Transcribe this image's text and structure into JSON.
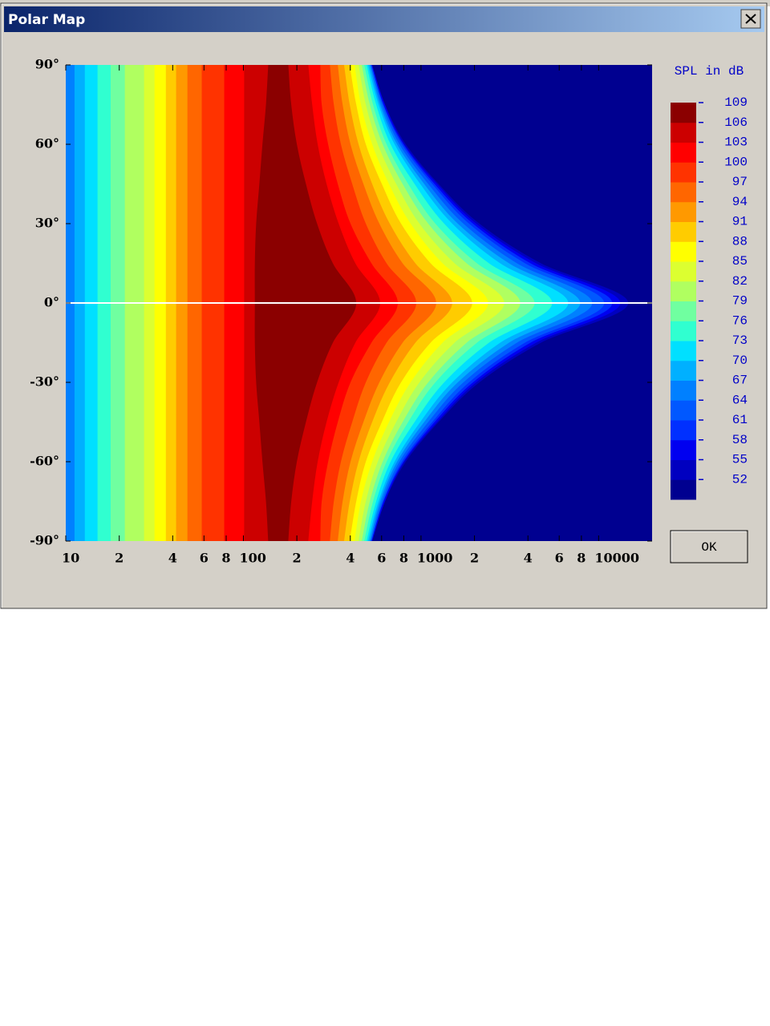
{
  "window": {
    "title": "Polar Map"
  },
  "button": {
    "label": "OK"
  },
  "chart_data": {
    "type": "contour",
    "x_scale": "log",
    "xlim": [
      10,
      20000
    ],
    "xticks": [
      10,
      {
        "value": 20,
        "label": "2"
      },
      {
        "value": 40,
        "label": "4"
      },
      {
        "value": 60,
        "label": "6"
      },
      {
        "value": 80,
        "label": "8"
      },
      100,
      {
        "value": 200,
        "label": "2"
      },
      {
        "value": 400,
        "label": "4"
      },
      {
        "value": 600,
        "label": "6"
      },
      {
        "value": 800,
        "label": "8"
      },
      1000,
      {
        "value": 2000,
        "label": "2"
      },
      {
        "value": 4000,
        "label": "4"
      },
      {
        "value": 6000,
        "label": "6"
      },
      {
        "value": 8000,
        "label": "8"
      },
      10000
    ],
    "ylim": [
      -90,
      90
    ],
    "yticks": [
      {
        "value": 90,
        "label": "90°"
      },
      {
        "value": 60,
        "label": "60°"
      },
      {
        "value": 30,
        "label": "30°"
      },
      {
        "value": 0,
        "label": "0°"
      },
      {
        "value": -30,
        "label": "-30°"
      },
      {
        "value": -60,
        "label": "-60°"
      },
      {
        "value": -90,
        "label": "-90°"
      }
    ],
    "zero_line": true,
    "zero_line_color": "#ffffff",
    "angles": [
      -90,
      -75,
      -60,
      -45,
      -30,
      -15,
      0,
      15,
      30,
      45,
      60,
      75,
      90
    ],
    "contours": [
      {
        "level": 52,
        "fall": [
          531,
          627,
          821,
          1257,
          2133,
          4739,
          14680,
          4739,
          2133,
          1257,
          821,
          627,
          531
        ]
      },
      {
        "level": 55,
        "fall": [
          531,
          627,
          804,
          1231,
          2046,
          4452,
          13230,
          4452,
          2046,
          1231,
          804,
          627,
          531
        ]
      },
      {
        "level": 58,
        "fall": [
          526,
          614,
          796,
          1193,
          1963,
          4141,
          11930,
          4141,
          1963,
          1193,
          796,
          614,
          526
        ]
      },
      {
        "level": 61,
        "fall": [
          526,
          614,
          780,
          1157,
          1864,
          3851,
          10750,
          3851,
          1864,
          1157,
          780,
          614,
          526
        ]
      },
      {
        "level": 64,
        "fall": [
          520,
          602,
          756,
          1098,
          1733,
          3472,
          9205,
          3472,
          1733,
          1098,
          756,
          602,
          520
        ]
      },
      {
        "level": 67,
        "rise": [
          11.2,
          11.2,
          11.2,
          11.2,
          11.2,
          11.2,
          11.2,
          11.2,
          11.2,
          11.2,
          11.2,
          11.2,
          11.2
        ],
        "fall": [
          515,
          589,
          733,
          1042,
          1612,
          3130,
          7878,
          3130,
          1612,
          1042,
          733,
          589,
          515
        ]
      },
      {
        "level": 70,
        "rise": [
          12.8,
          12.8,
          12.8,
          12.8,
          12.8,
          12.8,
          12.8,
          12.8,
          12.8,
          12.8,
          12.8,
          12.8,
          12.8
        ],
        "fall": [
          504,
          577,
          710,
          990,
          1499,
          2792,
          6745,
          2792,
          1499,
          990,
          710,
          577,
          504
        ]
      },
      {
        "level": 73,
        "rise": [
          15.1,
          15.1,
          15.1,
          15.1,
          15.1,
          15.1,
          15.1,
          15.1,
          15.1,
          15.1,
          15.1,
          15.1,
          15.1
        ],
        "fall": [
          494,
          559,
          674,
          920,
          1351,
          2415,
          5480,
          2415,
          1351,
          920,
          674,
          559,
          494
        ]
      },
      {
        "level": 76,
        "rise": [
          17.9,
          17.9,
          17.9,
          17.9,
          17.9,
          17.9,
          17.9,
          17.9,
          17.9,
          17.9,
          17.9,
          17.9,
          17.9
        ],
        "fall": [
          479,
          537,
          640,
          847,
          1205,
          2067,
          4361,
          2067,
          1205,
          847,
          640,
          537,
          479
        ]
      },
      {
        "level": 79,
        "rise": [
          21.5,
          21.5,
          21.5,
          21.5,
          21.5,
          21.5,
          21.5,
          21.5,
          21.5,
          21.5,
          21.5,
          21.5,
          21.5
        ],
        "fall": [
          464,
          515,
          608,
          788,
          1098,
          1807,
          3620,
          1807,
          1098,
          788,
          608,
          515,
          464
        ]
      },
      {
        "level": 82,
        "rise": [
          27.6,
          27.6,
          27.6,
          27.6,
          27.6,
          27.6,
          27.6,
          27.6,
          27.6,
          27.6,
          27.6,
          27.6,
          27.6
        ],
        "fall": [
          445,
          489,
          571,
          725,
          980,
          1546,
          2942,
          1546,
          980,
          725,
          571,
          489,
          445
        ]
      },
      {
        "level": 85,
        "rise": [
          31.6,
          31.6,
          31.6,
          31.6,
          31.6,
          31.6,
          31.6,
          31.6,
          31.6,
          31.6,
          31.6,
          31.6,
          31.6
        ],
        "fall": [
          423,
          459,
          531,
          660,
          874,
          1323,
          2390,
          1323,
          874,
          660,
          531,
          459,
          423
        ]
      },
      {
        "level": 88,
        "rise": [
          36.6,
          36.6,
          36.6,
          36.6,
          36.6,
          36.6,
          36.6,
          36.6,
          36.6,
          36.6,
          36.6,
          36.6,
          36.6
        ],
        "fall": [
          397,
          432,
          489,
          602,
          772,
          1133,
          1943,
          1133,
          772,
          602,
          489,
          432,
          397
        ]
      },
      {
        "level": 91,
        "rise": [
          41.8,
          41.8,
          41.8,
          41.8,
          41.8,
          41.8,
          41.8,
          41.8,
          41.8,
          41.8,
          41.8,
          41.8,
          41.8
        ],
        "fall": [
          369,
          397,
          445,
          531,
          667,
          930,
          1499,
          930,
          667,
          531,
          445,
          397,
          369
        ]
      },
      {
        "level": 94,
        "rise": [
          48.4,
          48.4,
          48.4,
          48.4,
          48.4,
          48.4,
          48.4,
          48.4,
          48.4,
          48.4,
          48.4,
          48.4,
          48.4
        ],
        "fall": [
          340,
          362,
          401,
          474,
          583,
          788,
          1218,
          788,
          583,
          474,
          401,
          362,
          340
        ]
      },
      {
        "level": 97,
        "rise": [
          58.3,
          58.3,
          58.3,
          58.3,
          58.3,
          58.3,
          58.3,
          58.3,
          58.3,
          58.3,
          58.3,
          58.3,
          58.3
        ],
        "fall": [
          307,
          323,
          354,
          410,
          489,
          640,
          940,
          640,
          489,
          410,
          354,
          323,
          307
        ]
      },
      {
        "level": 100,
        "rise": [
          78,
          78,
          78,
          78,
          78,
          78,
          78,
          78,
          78,
          78,
          78,
          78,
          78
        ],
        "fall": [
          271,
          276,
          300,
          340,
          401,
          526,
          740,
          526,
          401,
          340,
          300,
          276,
          271
        ]
      },
      {
        "level": 103,
        "rise": [
          101,
          101,
          101,
          101,
          101,
          101,
          101,
          101,
          101,
          101,
          101,
          101,
          101
        ],
        "fall": [
          232,
          244,
          262,
          294,
          344,
          427,
          589,
          427,
          344,
          294,
          262,
          244,
          232
        ]
      },
      {
        "level": 106,
        "rise": [
          138,
          134,
          128,
          123,
          118,
          116,
          116,
          116,
          118,
          123,
          128,
          134,
          138
        ],
        "fall": [
          179,
          186,
          200,
          225,
          260,
          319,
          432,
          319,
          260,
          225,
          200,
          186,
          179
        ]
      }
    ],
    "colorbar": {
      "title": "SPL in dB",
      "clim": [
        49,
        109
      ],
      "ticks": [
        109,
        106,
        103,
        100,
        97,
        94,
        91,
        88,
        85,
        82,
        79,
        76,
        73,
        70,
        67,
        64,
        61,
        58,
        55,
        52
      ],
      "tick_color": "#0000c8",
      "colors": [
        "#000090",
        "#0000c0",
        "#0000f0",
        "#0030ff",
        "#0058ff",
        "#0080ff",
        "#00b0ff",
        "#00e0ff",
        "#30ffd0",
        "#70ffa0",
        "#b0ff60",
        "#dcff30",
        "#ffff00",
        "#ffcc00",
        "#ff9900",
        "#ff6600",
        "#ff3300",
        "#ff0000",
        "#cc0000",
        "#8b0000"
      ]
    }
  }
}
